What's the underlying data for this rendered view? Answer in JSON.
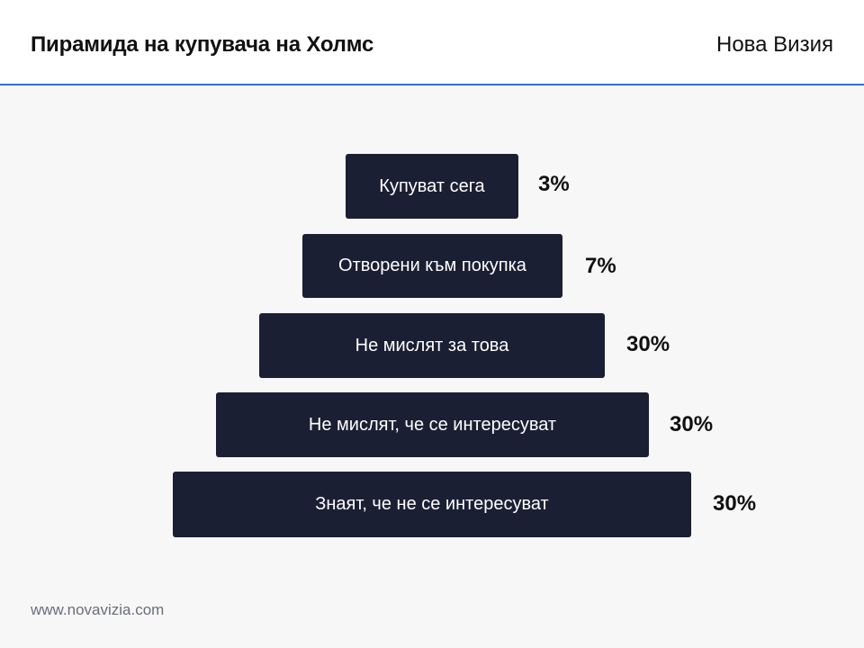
{
  "header": {
    "title": "Пирамида на купувача на Холмс",
    "brand": "Нова Визия"
  },
  "pyramid": {
    "tiers": [
      {
        "label": "Купуват сега",
        "percent": "3%"
      },
      {
        "label": "Отворени към покупка",
        "percent": "7%"
      },
      {
        "label": "Не мислят за това",
        "percent": "30%"
      },
      {
        "label": "Не мислят, че се интересуват",
        "percent": "30%"
      },
      {
        "label": "Знаят, че не се интересуват",
        "percent": "30%"
      }
    ]
  },
  "footer": {
    "url": "www.novavizia.com"
  },
  "colors": {
    "bar": "#1a1f33",
    "accent_line": "#2f6fd6",
    "background": "#f7f7f8"
  }
}
